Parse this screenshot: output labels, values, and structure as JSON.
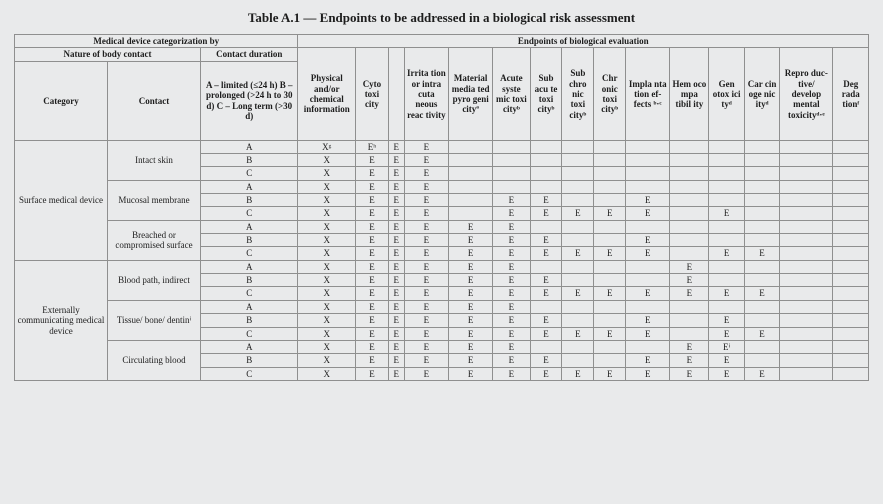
{
  "table": {
    "title": "Table A.1 — Endpoints to be addressed in a biological risk assessment",
    "header_groups": {
      "medical_device_categorization": "Medical device categorization by",
      "endpoints_biological_evaluation": "Endpoints of biological evaluation",
      "nature_body_contact": "Nature of body contact",
      "contact_duration": "Contact duration"
    },
    "duration_legend": "A – limited\n(≤24 h)\nB – prolonged\n(>24 h to 30 d)\nC – Long term\n(>30 d)",
    "columns": {
      "category": "Category",
      "contact": "Contact",
      "physical": "Physical and/or chemical informa­tion",
      "cyto": "Cyto toxi city",
      "blank": "",
      "irritation": "Irrita tion or intra cuta neous reac tivity",
      "material": "Ma­terial media ted pyro geni cityª",
      "acute": "Acute syste mic toxi cityᵇ",
      "subacute": "Sub acu te toxi cityᵇ",
      "subchronic": "Sub chro nic toxi cityᵇ",
      "chronic": "Chr onic toxi cityᵇ",
      "implant": "Impla nta tion ef­fects­ ᵇ·ᶜ",
      "hemo": "Hem oco mpa tibil ity",
      "geno": "Gen otox ici tyᵈ",
      "carcin": "Car cin oge nic ityᵈ",
      "repro": "Repro duc­tive/ develop mental toxici­tyᵈ·ᵉ",
      "degrad": "Deg rada tionᶠ"
    },
    "categories": [
      {
        "name": "Surface medical device",
        "contacts": [
          {
            "name": "Intact skin",
            "rows": [
              {
                "dur": "A",
                "cells": [
                  "Xᵍ",
                  "Eʰ",
                  "E",
                  "E",
                  "",
                  "",
                  "",
                  "",
                  "",
                  "",
                  "",
                  "",
                  "",
                  "",
                  ""
                ]
              },
              {
                "dur": "B",
                "cells": [
                  "X",
                  "E",
                  "E",
                  "E",
                  "",
                  "",
                  "",
                  "",
                  "",
                  "",
                  "",
                  "",
                  "",
                  "",
                  ""
                ]
              },
              {
                "dur": "C",
                "cells": [
                  "X",
                  "E",
                  "E",
                  "E",
                  "",
                  "",
                  "",
                  "",
                  "",
                  "",
                  "",
                  "",
                  "",
                  "",
                  ""
                ]
              }
            ]
          },
          {
            "name": "Mucosal membrane",
            "rows": [
              {
                "dur": "A",
                "cells": [
                  "X",
                  "E",
                  "E",
                  "E",
                  "",
                  "",
                  "",
                  "",
                  "",
                  "",
                  "",
                  "",
                  "",
                  "",
                  ""
                ]
              },
              {
                "dur": "B",
                "cells": [
                  "X",
                  "E",
                  "E",
                  "E",
                  "",
                  "E",
                  "E",
                  "",
                  "",
                  "E",
                  "",
                  "",
                  "",
                  "",
                  ""
                ]
              },
              {
                "dur": "C",
                "cells": [
                  "X",
                  "E",
                  "E",
                  "E",
                  "",
                  "E",
                  "E",
                  "E",
                  "E",
                  "E",
                  "",
                  "E",
                  "",
                  "",
                  ""
                ]
              }
            ]
          },
          {
            "name": "Breached or compromised surface",
            "rows": [
              {
                "dur": "A",
                "cells": [
                  "X",
                  "E",
                  "E",
                  "E",
                  "E",
                  "E",
                  "",
                  "",
                  "",
                  "",
                  "",
                  "",
                  "",
                  "",
                  ""
                ]
              },
              {
                "dur": "B",
                "cells": [
                  "X",
                  "E",
                  "E",
                  "E",
                  "E",
                  "E",
                  "E",
                  "",
                  "",
                  "E",
                  "",
                  "",
                  "",
                  "",
                  ""
                ]
              },
              {
                "dur": "C",
                "cells": [
                  "X",
                  "E",
                  "E",
                  "E",
                  "E",
                  "E",
                  "E",
                  "E",
                  "E",
                  "E",
                  "",
                  "E",
                  "E",
                  "",
                  ""
                ]
              }
            ]
          }
        ]
      },
      {
        "name": "Externally communicating medical device",
        "contacts": [
          {
            "name": "Blood path, indirect",
            "rows": [
              {
                "dur": "A",
                "cells": [
                  "X",
                  "E",
                  "E",
                  "E",
                  "E",
                  "E",
                  "",
                  "",
                  "",
                  "",
                  "E",
                  "",
                  "",
                  "",
                  ""
                ]
              },
              {
                "dur": "B",
                "cells": [
                  "X",
                  "E",
                  "E",
                  "E",
                  "E",
                  "E",
                  "E",
                  "",
                  "",
                  "",
                  "E",
                  "",
                  "",
                  "",
                  ""
                ]
              },
              {
                "dur": "C",
                "cells": [
                  "X",
                  "E",
                  "E",
                  "E",
                  "E",
                  "E",
                  "E",
                  "E",
                  "E",
                  "E",
                  "E",
                  "E",
                  "E",
                  "",
                  ""
                ]
              }
            ]
          },
          {
            "name": "Tissue/ bone/ dentinⁱ",
            "rows": [
              {
                "dur": "A",
                "cells": [
                  "X",
                  "E",
                  "E",
                  "E",
                  "E",
                  "E",
                  "",
                  "",
                  "",
                  "",
                  "",
                  "",
                  "",
                  "",
                  ""
                ]
              },
              {
                "dur": "B",
                "cells": [
                  "X",
                  "E",
                  "E",
                  "E",
                  "E",
                  "E",
                  "E",
                  "",
                  "",
                  "E",
                  "",
                  "E",
                  "",
                  "",
                  ""
                ]
              },
              {
                "dur": "C",
                "cells": [
                  "X",
                  "E",
                  "E",
                  "E",
                  "E",
                  "E",
                  "E",
                  "E",
                  "E",
                  "E",
                  "",
                  "E",
                  "E",
                  "",
                  ""
                ]
              }
            ]
          },
          {
            "name": "Circulating blood",
            "rows": [
              {
                "dur": "A",
                "cells": [
                  "X",
                  "E",
                  "E",
                  "E",
                  "E",
                  "E",
                  "",
                  "",
                  "",
                  "",
                  "E",
                  "Eⁱ",
                  "",
                  "",
                  ""
                ]
              },
              {
                "dur": "B",
                "cells": [
                  "X",
                  "E",
                  "E",
                  "E",
                  "E",
                  "E",
                  "E",
                  "",
                  "",
                  "E",
                  "E",
                  "E",
                  "",
                  "",
                  ""
                ]
              },
              {
                "dur": "C",
                "cells": [
                  "X",
                  "E",
                  "E",
                  "E",
                  "E",
                  "E",
                  "E",
                  "E",
                  "E",
                  "E",
                  "E",
                  "E",
                  "E",
                  "",
                  ""
                ]
              }
            ]
          }
        ]
      }
    ],
    "styling": {
      "background_color": "#e9eaeb",
      "border_color": "#8f8f8f",
      "font_family": "Georgia / Times serif-like",
      "title_fontsize_pt": 10,
      "cell_fontsize_pt": 7,
      "header_fontsize_pt": 7,
      "bold_headers": true,
      "column_count": 18,
      "visible_data_rows": 18
    }
  }
}
